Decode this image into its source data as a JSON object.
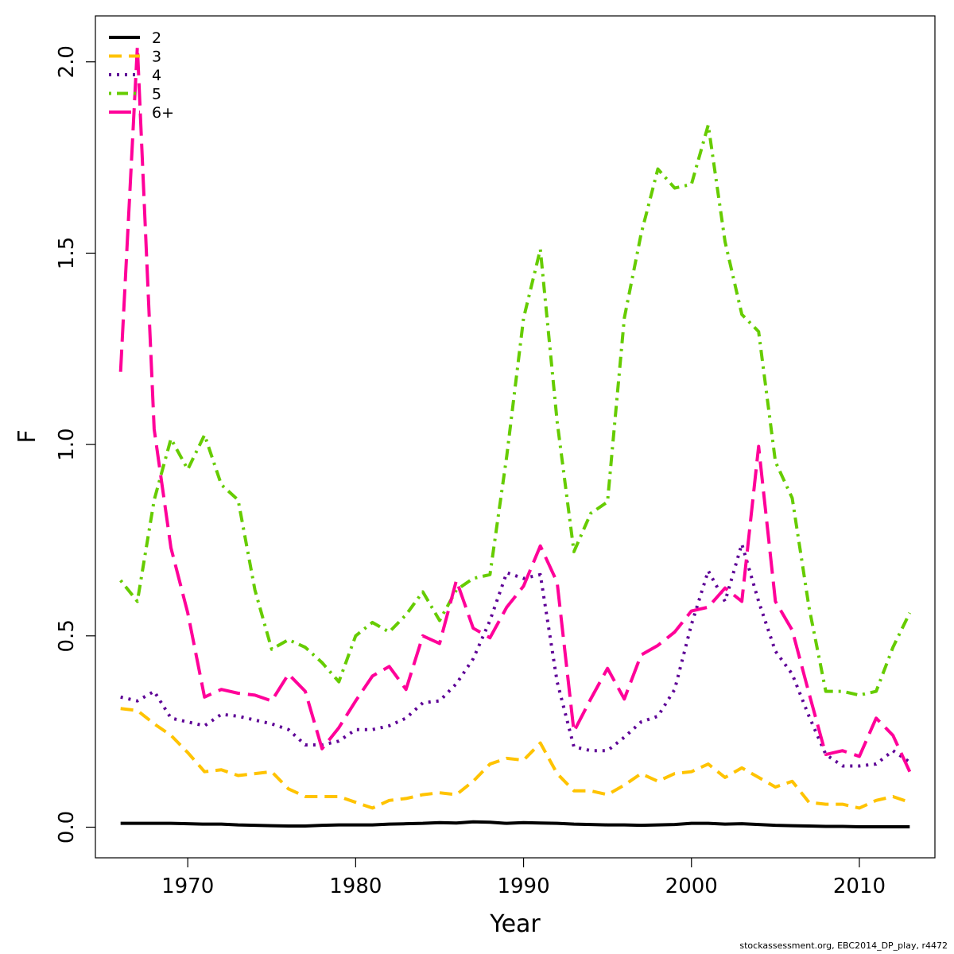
{
  "chart_data": {
    "type": "line",
    "title": "",
    "xlabel": "Year",
    "ylabel": "F",
    "xlim": [
      1964.5,
      2014.5
    ],
    "ylim": [
      -0.08,
      2.12
    ],
    "x_ticks": [
      1970,
      1980,
      1990,
      2000,
      2010
    ],
    "x_tick_labels": [
      "1970",
      "1980",
      "1990",
      "2000",
      "2010"
    ],
    "y_ticks": [
      0.0,
      0.5,
      1.0,
      1.5,
      2.0
    ],
    "y_tick_labels": [
      "0.0",
      "0.5",
      "1.0",
      "1.5",
      "2.0"
    ],
    "grid": false,
    "legend_position": "top-left",
    "x": [
      1966,
      1967,
      1968,
      1969,
      1970,
      1971,
      1972,
      1973,
      1974,
      1975,
      1976,
      1977,
      1978,
      1979,
      1980,
      1981,
      1982,
      1983,
      1984,
      1985,
      1986,
      1987,
      1988,
      1989,
      1990,
      1991,
      1992,
      1993,
      1994,
      1995,
      1996,
      1997,
      1998,
      1999,
      2000,
      2001,
      2002,
      2003,
      2004,
      2005,
      2006,
      2007,
      2008,
      2009,
      2010,
      2011,
      2012,
      2013
    ],
    "series": [
      {
        "name": "2",
        "color": "#000000",
        "dash": "solid",
        "values": [
          0.01,
          0.01,
          0.01,
          0.01,
          0.009,
          0.008,
          0.008,
          0.006,
          0.005,
          0.004,
          0.003,
          0.003,
          0.005,
          0.006,
          0.006,
          0.006,
          0.008,
          0.009,
          0.01,
          0.012,
          0.011,
          0.014,
          0.013,
          0.01,
          0.012,
          0.011,
          0.01,
          0.008,
          0.007,
          0.006,
          0.006,
          0.005,
          0.006,
          0.007,
          0.01,
          0.01,
          0.008,
          0.009,
          0.007,
          0.005,
          0.004,
          0.003,
          0.002,
          0.002,
          0.001,
          0.001,
          0.001,
          0.001
        ]
      },
      {
        "name": "3",
        "color": "#FFC300",
        "dash": "dashed",
        "values": [
          0.31,
          0.305,
          0.27,
          0.24,
          0.195,
          0.145,
          0.15,
          0.135,
          0.14,
          0.145,
          0.1,
          0.08,
          0.08,
          0.08,
          0.065,
          0.05,
          0.07,
          0.075,
          0.085,
          0.09,
          0.085,
          0.12,
          0.165,
          0.18,
          0.175,
          0.22,
          0.14,
          0.095,
          0.095,
          0.085,
          0.11,
          0.14,
          0.12,
          0.14,
          0.145,
          0.165,
          0.13,
          0.155,
          0.13,
          0.105,
          0.12,
          0.065,
          0.06,
          0.06,
          0.05,
          0.07,
          0.08,
          0.065
        ]
      },
      {
        "name": "4",
        "color": "#5E0096",
        "dash": "dotted",
        "values": [
          0.34,
          0.33,
          0.355,
          0.285,
          0.275,
          0.265,
          0.295,
          0.29,
          0.28,
          0.27,
          0.255,
          0.215,
          0.215,
          0.225,
          0.255,
          0.255,
          0.265,
          0.285,
          0.325,
          0.33,
          0.375,
          0.44,
          0.54,
          0.665,
          0.65,
          0.66,
          0.38,
          0.21,
          0.2,
          0.2,
          0.235,
          0.275,
          0.29,
          0.36,
          0.53,
          0.67,
          0.59,
          0.74,
          0.59,
          0.46,
          0.4,
          0.29,
          0.19,
          0.16,
          0.16,
          0.165,
          0.2,
          0.17
        ]
      },
      {
        "name": "5",
        "color": "#66CC00",
        "dash": "dotdash",
        "values": [
          0.645,
          0.59,
          0.855,
          1.015,
          0.935,
          1.025,
          0.895,
          0.855,
          0.62,
          0.465,
          0.49,
          0.47,
          0.43,
          0.38,
          0.5,
          0.535,
          0.51,
          0.555,
          0.615,
          0.54,
          0.62,
          0.65,
          0.66,
          0.97,
          1.33,
          1.51,
          1.06,
          0.72,
          0.82,
          0.85,
          1.33,
          1.55,
          1.72,
          1.67,
          1.68,
          1.835,
          1.53,
          1.34,
          1.295,
          0.955,
          0.86,
          0.575,
          0.355,
          0.355,
          0.345,
          0.355,
          0.47,
          0.56
        ]
      },
      {
        "name": "6+",
        "color": "#FF0099",
        "dash": "longdash",
        "values": [
          1.19,
          2.04,
          1.04,
          0.73,
          0.56,
          0.34,
          0.36,
          0.35,
          0.345,
          0.33,
          0.4,
          0.355,
          0.205,
          0.26,
          0.33,
          0.395,
          0.42,
          0.36,
          0.5,
          0.48,
          0.645,
          0.52,
          0.495,
          0.575,
          0.63,
          0.735,
          0.64,
          0.25,
          0.335,
          0.415,
          0.335,
          0.45,
          0.475,
          0.51,
          0.565,
          0.575,
          0.625,
          0.59,
          0.995,
          0.59,
          0.515,
          0.35,
          0.19,
          0.2,
          0.185,
          0.285,
          0.24,
          0.145
        ]
      }
    ]
  },
  "footer_text": "stockassessment.org, EBC2014_DP_play, r4472"
}
